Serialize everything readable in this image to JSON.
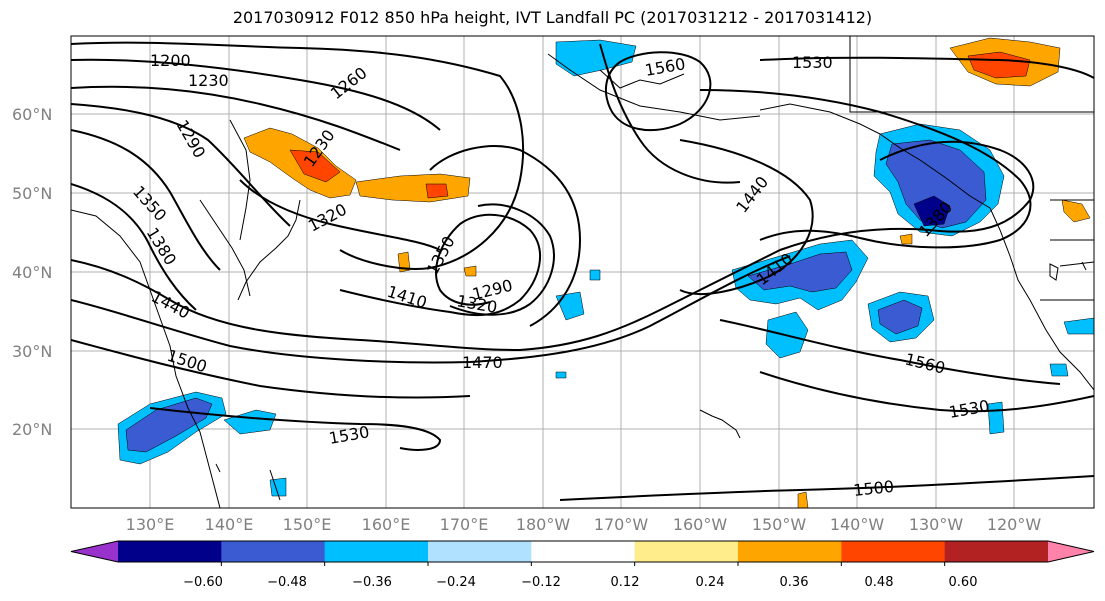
{
  "title": "2017030912 F012 850 hPa height, IVT Landfall PC (2017031212 - 2017031412)",
  "lat_labels": [
    "60°N",
    "50°N",
    "40°N",
    "30°N",
    "20°N"
  ],
  "lon_labels": [
    "130°E",
    "140°E",
    "150°E",
    "160°E",
    "170°E",
    "180°W",
    "170°W",
    "160°W",
    "150°W",
    "140°W",
    "130°W",
    "120°W"
  ],
  "contour_labels": [
    "1200",
    "1230",
    "1260",
    "1290",
    "1230",
    "1320",
    "1350",
    "1380",
    "1440",
    "1500",
    "1350",
    "1410",
    "1290",
    "1320",
    "1470",
    "1560",
    "1530",
    "1440",
    "1380",
    "1410",
    "1560",
    "1530",
    "1530",
    "1500"
  ],
  "colorbar": {
    "ticks": [
      "−0.60",
      "−0.48",
      "−0.36",
      "−0.24",
      "−0.12",
      "0.12",
      "0.24",
      "0.36",
      "0.48",
      "0.60"
    ],
    "colors": [
      "#9932cc",
      "#00008b",
      "#3a5bd1",
      "#00bfff",
      "#b0e2ff",
      "#ffffff",
      "#ffec8b",
      "#ffa500",
      "#ff4500",
      "#b22222",
      "#ff82ab"
    ]
  }
}
